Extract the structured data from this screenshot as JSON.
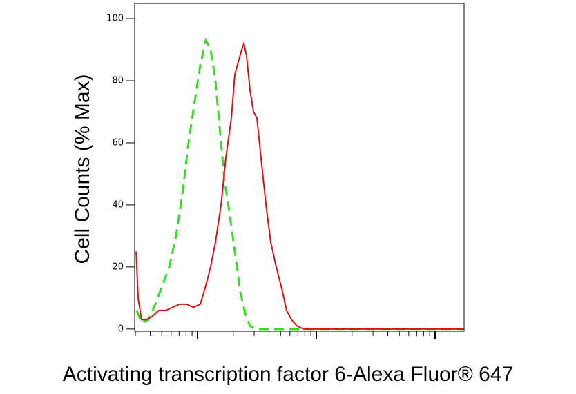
{
  "chart_data": {
    "type": "line",
    "xlabel": "Activating transcription factor 6-Alexa Fluor® 647",
    "ylabel": "Cell Counts (% Max)",
    "xlim": [
      1.471,
      4.244
    ],
    "ylim": [
      -0.7,
      104.9
    ],
    "xticks": [
      2,
      3,
      4
    ],
    "xminorticks": [
      1.477,
      1.602,
      1.699,
      1.778,
      1.845,
      1.903,
      1.954,
      2.301,
      2.477,
      2.602,
      2.699,
      2.778,
      2.845,
      2.903,
      2.954,
      3.301,
      3.477,
      3.602,
      3.699,
      3.778,
      3.845,
      3.903,
      3.954
    ],
    "yticks": [
      0,
      20,
      40,
      60,
      80,
      100
    ],
    "series": [
      {
        "color": "#33dd22",
        "dash": true,
        "x": [
          1.488,
          1.529,
          1.587,
          1.645,
          1.703,
          1.762,
          1.82,
          1.878,
          1.924,
          1.983,
          2.023,
          2.07,
          2.11,
          2.151,
          2.186,
          2.227,
          2.267,
          2.314,
          2.36,
          2.401,
          2.442,
          2.488,
          4.244
        ],
        "values": [
          6,
          2,
          3,
          8,
          14,
          20,
          30,
          45,
          60,
          75,
          85,
          93,
          90,
          80,
          65,
          48,
          38,
          25,
          12,
          5,
          1,
          0,
          0
        ]
      },
      {
        "color": "#dd1111",
        "dash": false,
        "x": [
          1.483,
          1.5,
          1.529,
          1.57,
          1.616,
          1.674,
          1.733,
          1.791,
          1.849,
          1.907,
          1.965,
          2.023,
          2.07,
          2.11,
          2.151,
          2.198,
          2.238,
          2.285,
          2.314,
          2.343,
          2.372,
          2.39,
          2.413,
          2.442,
          2.471,
          2.5,
          2.535,
          2.576,
          2.616,
          2.663,
          2.709,
          2.75,
          2.791,
          2.837,
          2.895,
          4.244
        ],
        "values": [
          25,
          10,
          3,
          3,
          4,
          6,
          6,
          7,
          8,
          8,
          7,
          8,
          14,
          20,
          28,
          40,
          55,
          68,
          82,
          86,
          90,
          92,
          88,
          77,
          70,
          68,
          55,
          40,
          28,
          20,
          13,
          6,
          3,
          1,
          0,
          0
        ]
      }
    ]
  }
}
